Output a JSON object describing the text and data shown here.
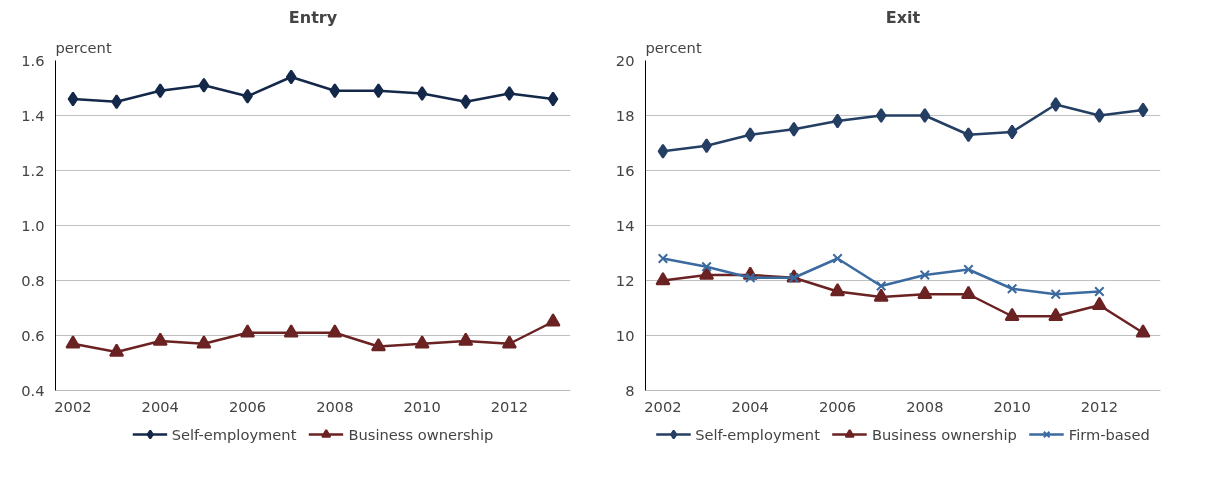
{
  "chart_data": [
    {
      "type": "line",
      "title": "Entry",
      "ylabel": "percent",
      "x": [
        2002,
        2003,
        2004,
        2005,
        2006,
        2007,
        2008,
        2009,
        2010,
        2011,
        2012,
        2013
      ],
      "xlim": [
        2001.6,
        2013.4
      ],
      "xticks": [
        2002,
        2004,
        2006,
        2008,
        2010,
        2012
      ],
      "ylim": [
        0.4,
        1.6
      ],
      "yticks": [
        {
          "value": 0.4,
          "label": "0.4"
        },
        {
          "value": 0.6,
          "label": "0.6"
        },
        {
          "value": 0.8,
          "label": "0.8"
        },
        {
          "value": 1.0,
          "label": "1.0"
        },
        {
          "value": 1.2,
          "label": "1.2"
        },
        {
          "value": 1.4,
          "label": "1.4"
        },
        {
          "value": 1.6,
          "label": "1.6"
        }
      ],
      "grid": "y",
      "legend": "bottom",
      "series": [
        {
          "name": "Self-employment",
          "color": "#14284a",
          "marker": "diamond",
          "values": [
            1.46,
            1.45,
            1.49,
            1.51,
            1.47,
            1.54,
            1.49,
            1.49,
            1.48,
            1.45,
            1.48,
            1.46
          ]
        },
        {
          "name": "Business ownership",
          "color": "#6b2222",
          "marker": "triangle",
          "values": [
            0.57,
            0.54,
            0.58,
            0.57,
            0.61,
            0.61,
            0.61,
            0.56,
            0.57,
            0.58,
            0.57,
            0.65
          ]
        }
      ]
    },
    {
      "type": "line",
      "title": "Exit",
      "ylabel": "percent",
      "x": [
        2002,
        2003,
        2004,
        2005,
        2006,
        2007,
        2008,
        2009,
        2010,
        2011,
        2012,
        2013
      ],
      "xlim": [
        2001.6,
        2013.4
      ],
      "xticks": [
        2002,
        2004,
        2006,
        2008,
        2010,
        2012
      ],
      "ylim": [
        8,
        20
      ],
      "yticks": [
        8,
        10,
        12,
        14,
        16,
        18,
        20
      ],
      "grid": "y",
      "legend": "bottom",
      "series": [
        {
          "name": "Self-employment",
          "color": "#243f63",
          "marker": "diamond",
          "values": [
            16.7,
            16.9,
            17.3,
            17.5,
            17.8,
            18.0,
            18.0,
            17.3,
            17.4,
            18.4,
            18.0,
            18.2
          ]
        },
        {
          "name": "Business ownership",
          "color": "#6b2222",
          "marker": "triangle",
          "values": [
            12.0,
            12.2,
            12.2,
            12.1,
            11.6,
            11.4,
            11.5,
            11.5,
            10.7,
            10.7,
            11.1,
            10.1
          ]
        },
        {
          "name": "Firm-based",
          "color": "#3b6aa0",
          "marker": "x",
          "values": [
            12.8,
            12.5,
            12.1,
            12.1,
            12.8,
            11.8,
            12.2,
            12.4,
            11.7,
            11.5,
            11.6,
            null
          ]
        }
      ]
    }
  ]
}
